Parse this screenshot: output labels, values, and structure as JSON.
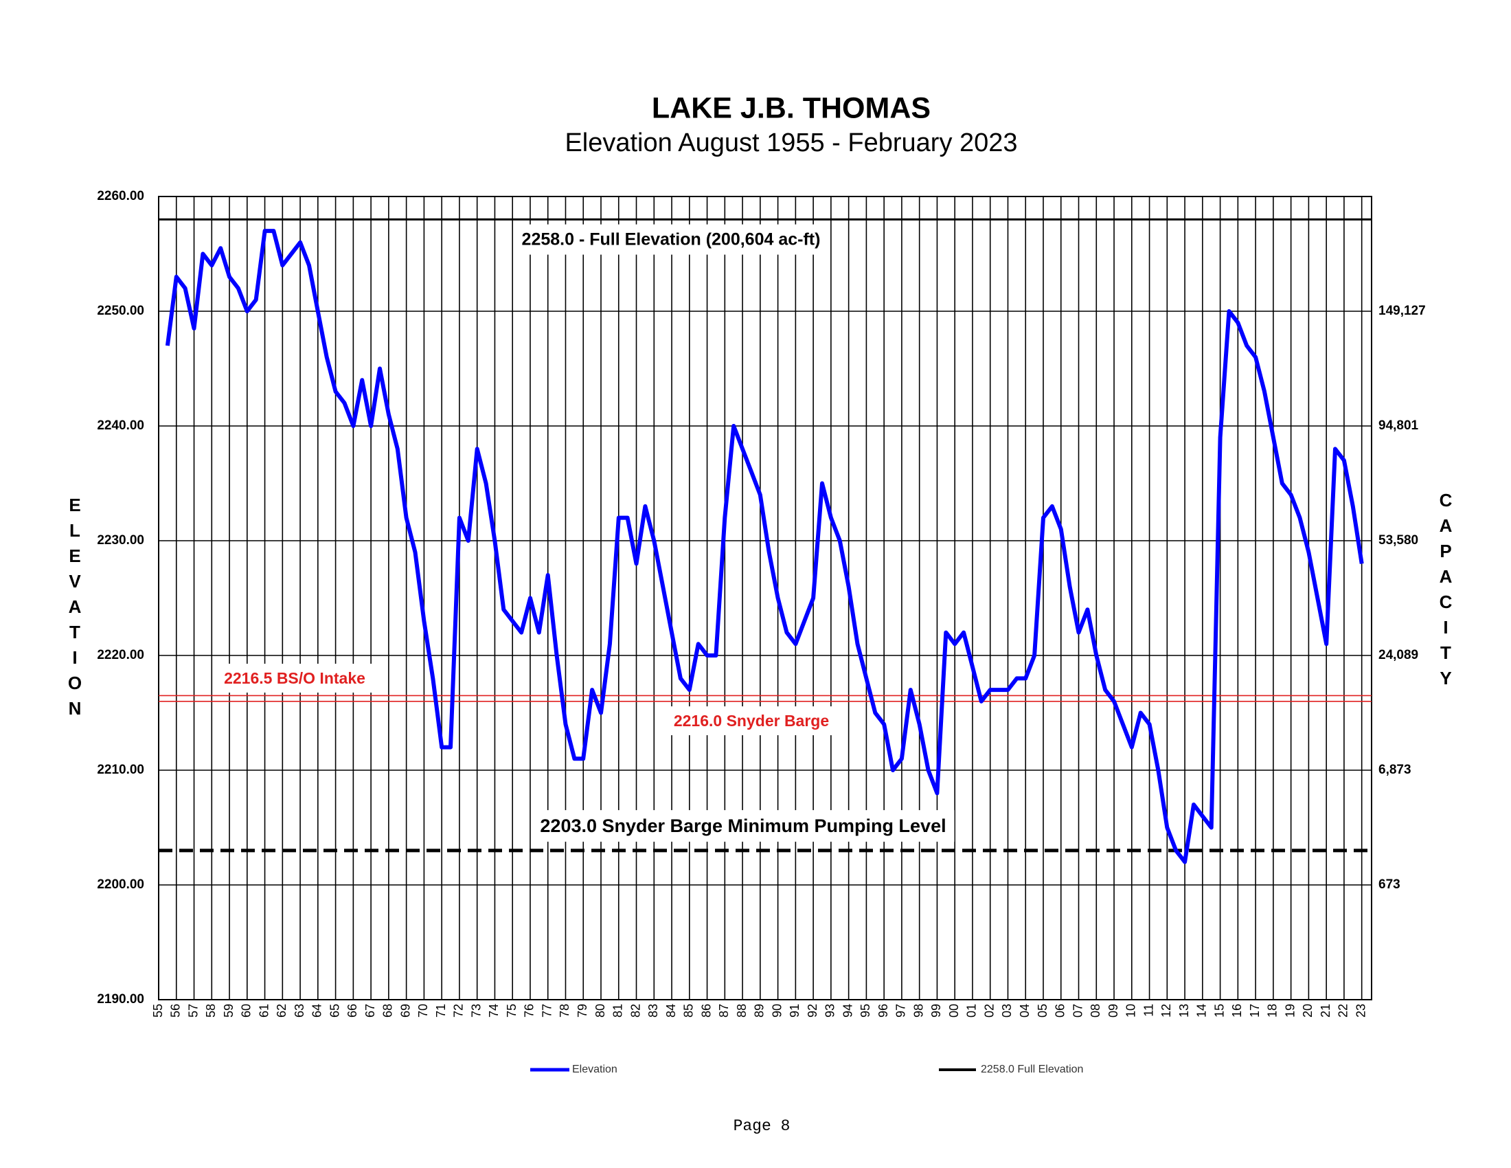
{
  "chart_data": {
    "type": "line",
    "title": "LAKE J.B. THOMAS",
    "subtitle": "Elevation August 1955 - February 2023",
    "ylabel": "ELEVATION",
    "y2label": "CAPACITY",
    "footer": "Page 8",
    "categories": [
      "55",
      null,
      "56",
      null,
      "57",
      null,
      "58",
      null,
      "59",
      null,
      "60",
      null,
      "61",
      null,
      "62",
      null,
      "63",
      null,
      "64",
      null,
      "65",
      null,
      "66",
      null,
      "67",
      null,
      "68",
      null,
      "69",
      null,
      "70",
      null,
      "71",
      null,
      "72",
      null,
      "73",
      null,
      "74",
      null,
      "75",
      null,
      "76",
      null,
      "77",
      null,
      "78",
      null,
      "79",
      null,
      "80",
      null,
      "81",
      null,
      "82",
      null,
      "83",
      null,
      "84",
      null,
      "85",
      null,
      "86",
      null,
      "87",
      null,
      "88",
      null,
      "89",
      null,
      "90",
      null,
      "91",
      null,
      "92",
      null,
      "93",
      null,
      "94",
      null,
      "95",
      null,
      "96",
      null,
      "97",
      null,
      "98",
      null,
      "99",
      null,
      "00",
      null,
      "01",
      null,
      "02",
      null,
      "03",
      null,
      "04",
      null,
      "05",
      null,
      "06",
      null,
      "07",
      null,
      "08",
      null,
      "09",
      null,
      "10",
      null,
      "11",
      null,
      "12",
      null,
      "13",
      null,
      "14",
      null,
      "15",
      null,
      "16",
      null,
      "17",
      null,
      "18",
      null,
      "19",
      null,
      "20",
      null,
      "21",
      null,
      "22",
      null,
      "23"
    ],
    "series": [
      {
        "name": "Elevation",
        "color": "#0000ff",
        "values": [
          null,
          2247,
          2253,
          2252,
          2248.5,
          2255,
          2254,
          2255.5,
          2253,
          2252,
          2250,
          2251,
          2257,
          2257,
          2254,
          2255,
          2256,
          2254,
          2250,
          2246,
          2243,
          2242,
          2240,
          2244,
          2240,
          2245,
          2241,
          2238,
          2232,
          2229,
          2223,
          2218,
          2212,
          2212,
          2232,
          2230,
          2238,
          2235,
          2230,
          2224,
          2223,
          2222,
          2225,
          2222,
          2227,
          2220,
          2214,
          2211,
          2211,
          2217,
          2215,
          2221,
          2232,
          2232,
          2228,
          2233,
          2230,
          2226,
          2222,
          2218,
          2217,
          2221,
          2220,
          2220,
          2232,
          2240,
          2238,
          2236,
          2234,
          2229,
          2225,
          2222,
          2221,
          2223,
          2225,
          2235,
          2232,
          2230,
          2226,
          2221,
          2218,
          2215,
          2214,
          2210,
          2211,
          2217,
          2214,
          2210,
          2208,
          2222,
          2221,
          2222,
          2219,
          2216,
          2217,
          2217,
          2217,
          2218,
          2218,
          2220,
          2232,
          2233,
          2231,
          2226,
          2222,
          2224,
          2220,
          2217,
          2216,
          2214,
          2212,
          2215,
          2214,
          2210,
          2205,
          2203,
          2202,
          2207,
          2206,
          2205,
          2239,
          2250,
          2249,
          2247,
          2246,
          2243,
          2239,
          2235,
          2234,
          2232,
          2229,
          2225,
          2221,
          2238,
          2237,
          2233,
          2228
        ]
      }
    ],
    "ylim": [
      2190,
      2260
    ],
    "yticks": [
      {
        "value": 2190,
        "label": "2190.00"
      },
      {
        "value": 2200,
        "label": "2200.00"
      },
      {
        "value": 2210,
        "label": "2210.00"
      },
      {
        "value": 2220,
        "label": "2220.00"
      },
      {
        "value": 2230,
        "label": "2230.00"
      },
      {
        "value": 2240,
        "label": "2240.00"
      },
      {
        "value": 2250,
        "label": "2250.00"
      },
      {
        "value": 2260,
        "label": "2260.00"
      }
    ],
    "y2ticks": [
      {
        "value": 673,
        "label": "673",
        "elevation": 2200
      },
      {
        "value": 6873,
        "label": "6,873",
        "elevation": 2210
      },
      {
        "value": 24089,
        "label": "24,089",
        "elevation": 2220
      },
      {
        "value": 53580,
        "label": "53,580",
        "elevation": 2230
      },
      {
        "value": 94801,
        "label": "94,801",
        "elevation": 2240
      },
      {
        "value": 149127,
        "label": "149,127",
        "elevation": 2250
      }
    ],
    "grid": true,
    "annotations": [
      {
        "value": 2258,
        "label": "2258.0 - Full Elevation (200,604 ac-ft)",
        "legend": "2258.0 Full Elevation",
        "color": "#000000",
        "style": "solid"
      },
      {
        "value": 2216.5,
        "label": "2216.5 BS/O Intake",
        "color": "#e02020",
        "style": "thin"
      },
      {
        "value": 2216,
        "label": "2216.0 Snyder Barge",
        "color": "#e02020",
        "style": "thin"
      },
      {
        "value": 2203,
        "label": "2203.0 Snyder Barge Minimum Pumping Level",
        "color": "#000000",
        "style": "dashed"
      }
    ]
  }
}
